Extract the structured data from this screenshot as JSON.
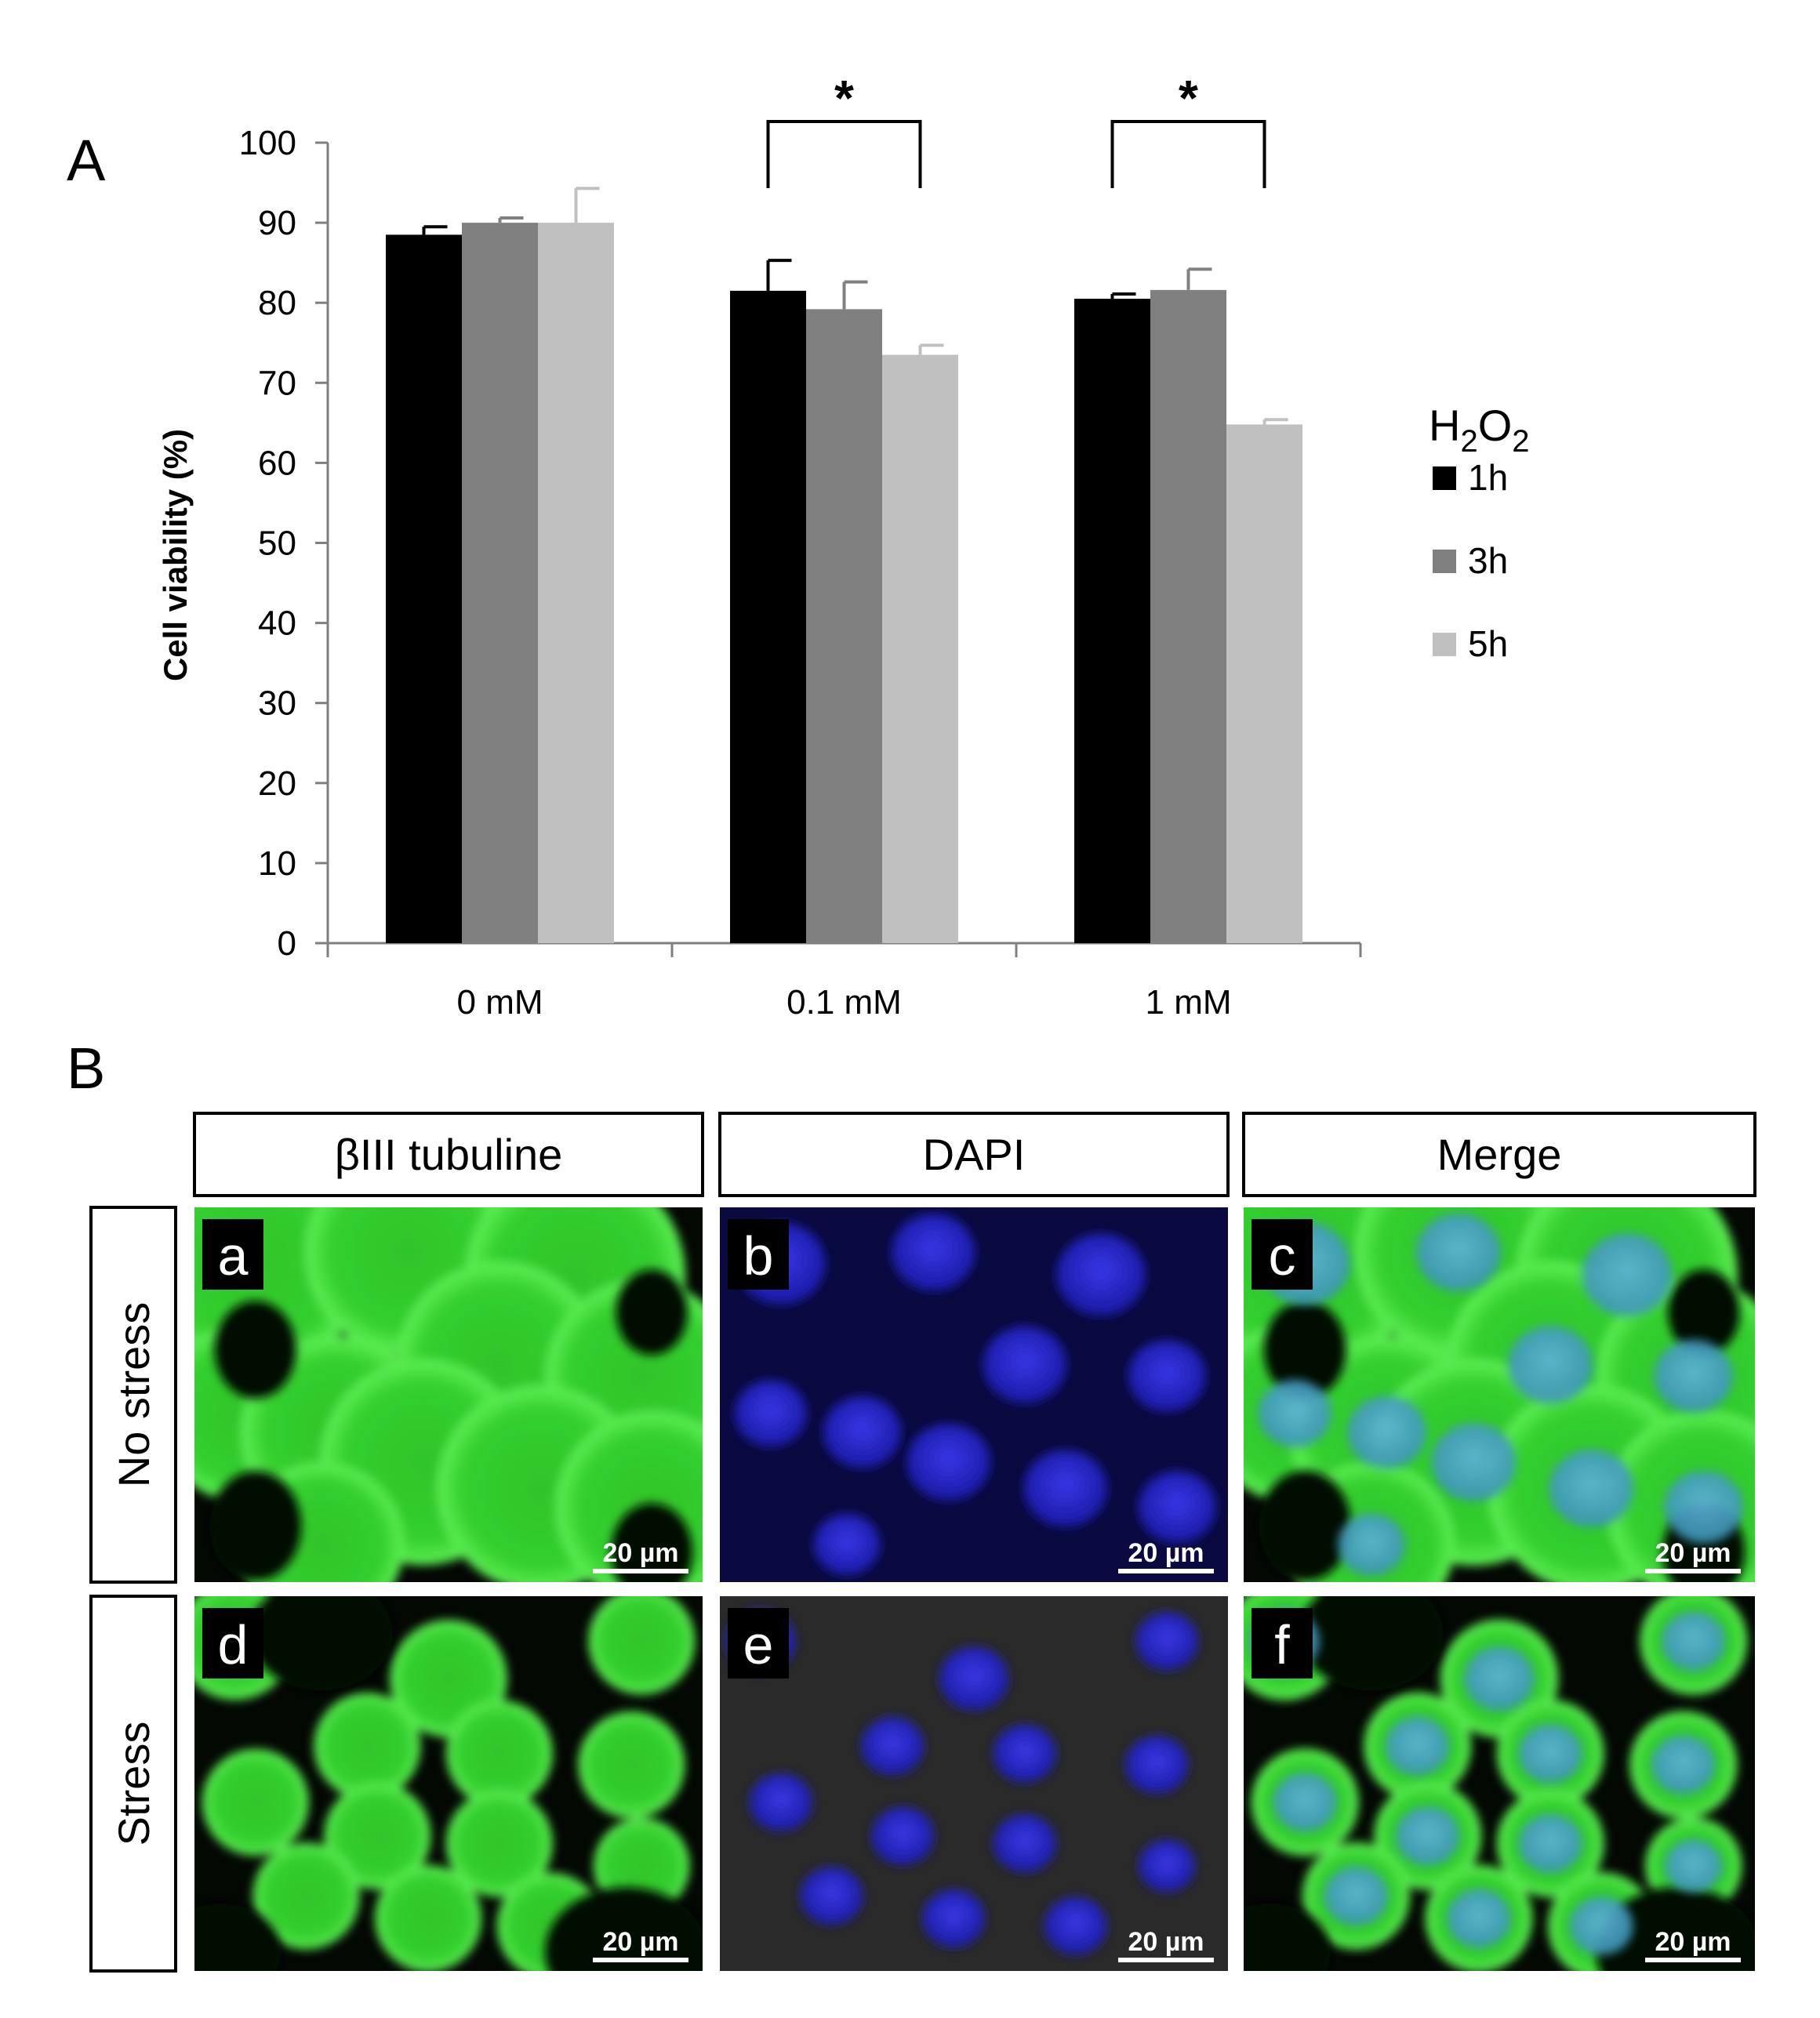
{
  "panel_a_label": "A",
  "panel_b_label": "B",
  "chart_data": {
    "type": "bar",
    "categories": [
      "0 mM",
      "0.1 mM",
      "1 mM"
    ],
    "series": [
      {
        "name": "1h",
        "color": "#000000",
        "values": [
          88.5,
          81.5,
          80.5
        ],
        "errors": [
          1.0,
          3.8,
          0.6
        ]
      },
      {
        "name": "3h",
        "color": "#808080",
        "values": [
          90.0,
          79.2,
          81.6
        ],
        "errors": [
          0.6,
          3.4,
          2.6
        ]
      },
      {
        "name": "5h",
        "color": "#c0c0c0",
        "values": [
          90.0,
          73.5,
          64.8
        ],
        "errors": [
          4.3,
          1.2,
          0.6
        ]
      }
    ],
    "title": "",
    "xlabel": "",
    "ylabel": "Cell viability (%)",
    "ylim": [
      0,
      100
    ],
    "yticks": [
      "0",
      "10",
      "20",
      "30",
      "40",
      "50",
      "60",
      "70",
      "80",
      "90",
      "100"
    ],
    "grid": false,
    "legend": {
      "title_main": "H",
      "title_sub1": "2",
      "title_mid": "O",
      "title_sub2": "2",
      "placement": "right"
    },
    "significance": [
      {
        "category_index": 1,
        "from_series": 0,
        "to_series": 2,
        "label": "*"
      },
      {
        "category_index": 2,
        "from_series": 0,
        "to_series": 2,
        "label": "*"
      }
    ]
  },
  "panel_b": {
    "columns": [
      "βIII tubuline",
      "DAPI",
      "Merge"
    ],
    "rows": [
      "No stress",
      "Stress"
    ],
    "images": [
      {
        "letter": "a",
        "scale": "20 µm",
        "stain": "tubulin",
        "pattern": "spread"
      },
      {
        "letter": "b",
        "scale": "20 µm",
        "stain": "dapi",
        "pattern": "spread"
      },
      {
        "letter": "c",
        "scale": "20 µm",
        "stain": "merge",
        "pattern": "spread"
      },
      {
        "letter": "d",
        "scale": "20 µm",
        "stain": "tubulin",
        "pattern": "round"
      },
      {
        "letter": "e",
        "scale": "20 µm",
        "stain": "dapi",
        "pattern": "round"
      },
      {
        "letter": "f",
        "scale": "20 µm",
        "stain": "merge",
        "pattern": "round"
      }
    ],
    "colors": {
      "tubulin": "#22c21e",
      "dapi": "#1e1ec8",
      "merge_nucleus": "#3ca0c8"
    }
  }
}
